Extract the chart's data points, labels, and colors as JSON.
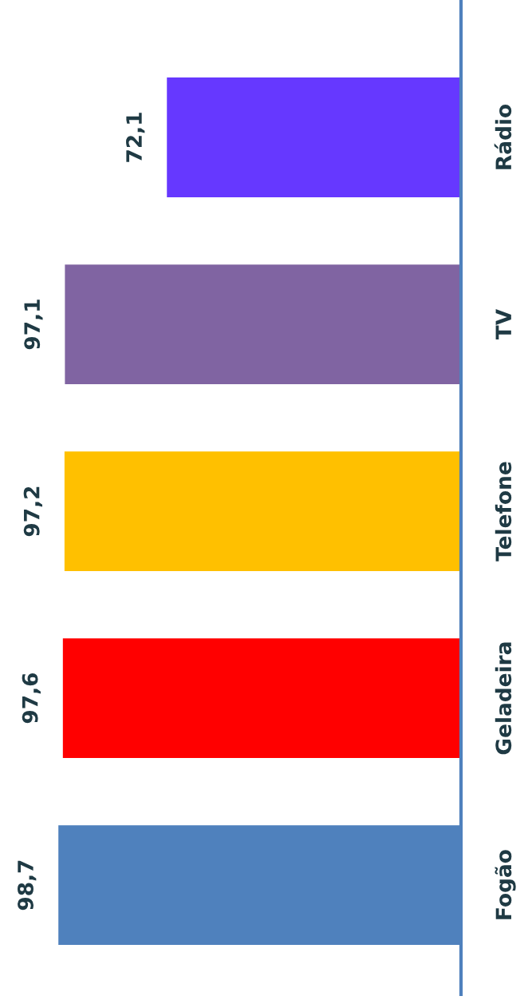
{
  "chart_data": {
    "type": "bar",
    "orientation": "horizontal",
    "categories": [
      "Rádio",
      "TV",
      "Telefone",
      "Geladeira",
      "Fogão"
    ],
    "values": [
      72.1,
      97.1,
      97.2,
      97.6,
      98.7
    ],
    "value_labels": [
      "72,1",
      "97,1",
      "97,2",
      "97,6",
      "98,7"
    ],
    "colors": [
      "#6638ff",
      "#8064a2",
      "#ffc000",
      "#ff0000",
      "#4f81bd"
    ],
    "grid": false,
    "legend": false
  }
}
